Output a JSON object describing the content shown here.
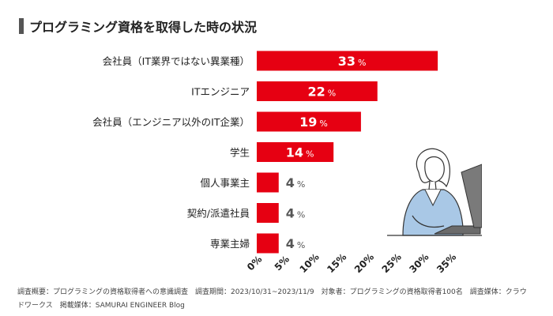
{
  "title": "プログラミング資格を取得した時の状況",
  "chart_data": {
    "type": "bar",
    "orientation": "horizontal",
    "categories": [
      "会社員（IT業界ではない異業種）",
      "ITエンジニア",
      "会社員（エンジニア以外のIT企業）",
      "学生",
      "個人事業主",
      "契約/派遣社員",
      "専業主婦"
    ],
    "values": [
      33,
      22,
      19,
      14,
      4,
      4,
      4
    ],
    "value_suffix": "%",
    "xlim": [
      0,
      35
    ],
    "xticks": [
      "0%",
      "5%",
      "10%",
      "15%",
      "20%",
      "25%",
      "30%",
      "35%"
    ],
    "bar_color": "#e60012",
    "grid": false
  },
  "footer": {
    "line1": "調査概要：プログラミングの資格取得者への意識調査　調査期間：2023/10/31~2023/11/9　対象者：プログラミングの資格取得者100名　調査媒体：クラウ",
    "line2": "ドワークス　掲載媒体：SAMURAI ENGINEER Blog"
  }
}
